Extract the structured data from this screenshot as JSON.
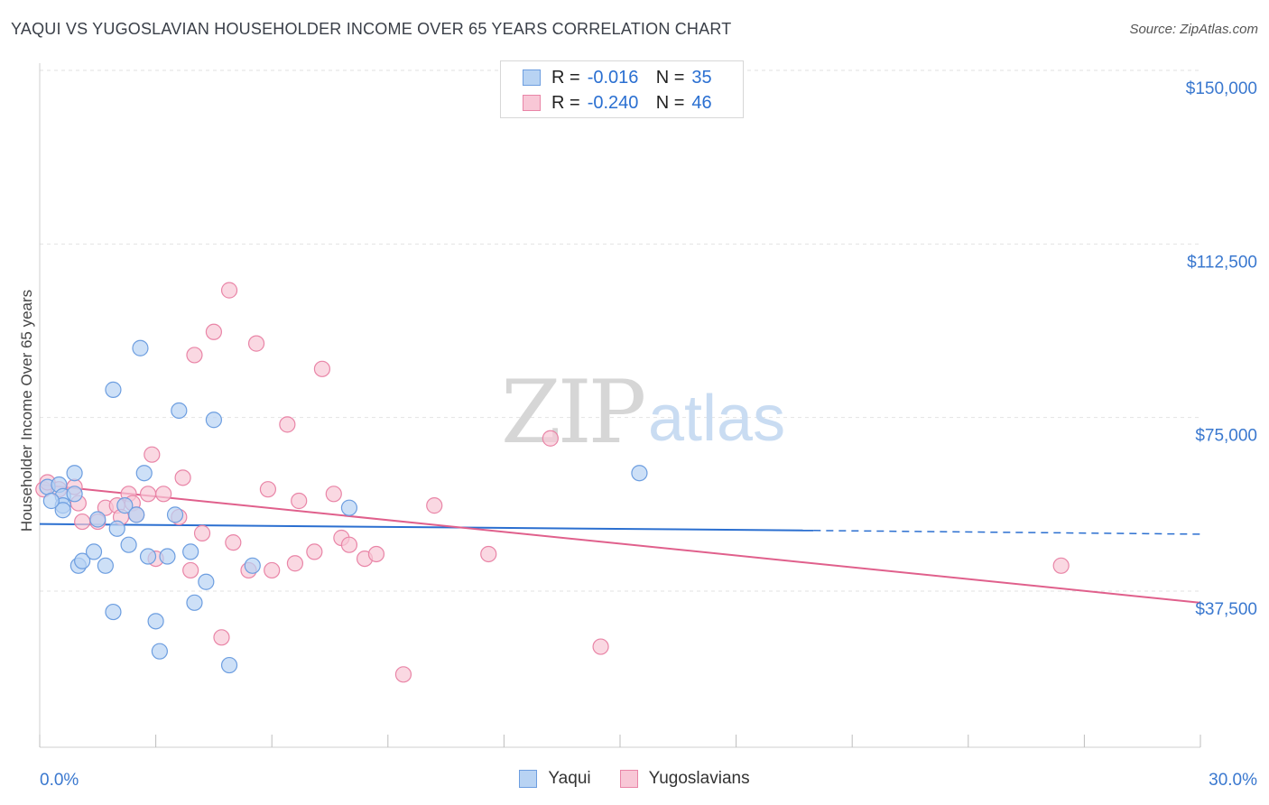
{
  "title": "YAQUI VS YUGOSLAVIAN HOUSEHOLDER INCOME OVER 65 YEARS CORRELATION CHART",
  "source": "Source: ZipAtlas.com",
  "watermark": {
    "zip": "ZIP",
    "atlas": "atlas"
  },
  "colors": {
    "yaqui_fill": "#b8d3f3",
    "yaqui_stroke": "#6d9ee0",
    "yaqui_line": "#2b6fd0",
    "yugo_fill": "#f8c7d6",
    "yugo_stroke": "#e985a7",
    "yugo_line": "#e0608c",
    "tick_label": "#3a78cf",
    "grid": "#e2e2e2"
  },
  "legend_top": [
    {
      "series": "Yaqui",
      "r_label": "R =",
      "r_value": "-0.016",
      "n_label": "N =",
      "n_value": "35"
    },
    {
      "series": "Yugoslavians",
      "r_label": "R =",
      "r_value": "-0.240",
      "n_label": "N =",
      "n_value": "46"
    }
  ],
  "legend_bottom": [
    "Yaqui",
    "Yugoslavians"
  ],
  "chart_data": {
    "type": "scatter",
    "title": "YAQUI VS YUGOSLAVIAN HOUSEHOLDER INCOME OVER 65 YEARS CORRELATION CHART",
    "xlabel": "",
    "ylabel": "Householder Income Over 65 years",
    "xlim": [
      0,
      30
    ],
    "ylim": [
      0,
      155000
    ],
    "x_tick_labels": [
      "0.0%",
      "30.0%"
    ],
    "y_ticks": [
      37500,
      75000,
      112500,
      150000
    ],
    "y_tick_labels": [
      "$37,500",
      "$75,000",
      "$112,500",
      "$150,000"
    ],
    "grid": true,
    "legend_position": "top-center",
    "series": [
      {
        "name": "Yaqui",
        "points": [
          [
            0.2,
            60000
          ],
          [
            0.5,
            60500
          ],
          [
            0.6,
            58000
          ],
          [
            0.6,
            56000
          ],
          [
            0.9,
            63000
          ],
          [
            0.9,
            58500
          ],
          [
            0.6,
            55000
          ],
          [
            1.0,
            43000
          ],
          [
            1.1,
            44000
          ],
          [
            1.4,
            46000
          ],
          [
            1.5,
            53000
          ],
          [
            1.7,
            43000
          ],
          [
            1.9,
            81000
          ],
          [
            1.9,
            33000
          ],
          [
            2.0,
            51000
          ],
          [
            2.2,
            56000
          ],
          [
            2.3,
            47500
          ],
          [
            2.5,
            54000
          ],
          [
            2.6,
            90000
          ],
          [
            2.7,
            63000
          ],
          [
            2.8,
            45000
          ],
          [
            3.0,
            31000
          ],
          [
            3.1,
            24500
          ],
          [
            3.3,
            45000
          ],
          [
            3.5,
            54000
          ],
          [
            3.6,
            76500
          ],
          [
            3.9,
            46000
          ],
          [
            4.0,
            35000
          ],
          [
            4.3,
            39500
          ],
          [
            4.5,
            74500
          ],
          [
            4.9,
            21500
          ],
          [
            5.5,
            43000
          ],
          [
            8.0,
            55500
          ],
          [
            15.5,
            63000
          ],
          [
            0.3,
            57000
          ]
        ],
        "trend": {
          "x": [
            0,
            20
          ],
          "y": [
            52000,
            50600
          ],
          "dashed_to": [
            30,
            49800
          ]
        }
      },
      {
        "name": "Yugoslavians",
        "points": [
          [
            0.1,
            59500
          ],
          [
            0.5,
            59500
          ],
          [
            0.9,
            60000
          ],
          [
            1.0,
            56500
          ],
          [
            1.1,
            52500
          ],
          [
            1.5,
            52500
          ],
          [
            1.7,
            55500
          ],
          [
            2.0,
            56000
          ],
          [
            2.1,
            53500
          ],
          [
            2.3,
            58500
          ],
          [
            2.4,
            56500
          ],
          [
            2.5,
            54000
          ],
          [
            2.8,
            58500
          ],
          [
            2.9,
            67000
          ],
          [
            3.0,
            44500
          ],
          [
            3.2,
            58500
          ],
          [
            3.6,
            53500
          ],
          [
            3.7,
            62000
          ],
          [
            3.9,
            42000
          ],
          [
            4.0,
            88500
          ],
          [
            4.2,
            50000
          ],
          [
            4.5,
            93500
          ],
          [
            4.7,
            27500
          ],
          [
            4.9,
            102500
          ],
          [
            5.0,
            48000
          ],
          [
            5.4,
            42000
          ],
          [
            5.6,
            91000
          ],
          [
            5.9,
            59500
          ],
          [
            6.0,
            42000
          ],
          [
            6.4,
            73500
          ],
          [
            6.6,
            43500
          ],
          [
            6.7,
            57000
          ],
          [
            7.1,
            46000
          ],
          [
            7.3,
            85500
          ],
          [
            7.6,
            58500
          ],
          [
            7.8,
            49000
          ],
          [
            8.0,
            47500
          ],
          [
            8.4,
            44500
          ],
          [
            8.7,
            45500
          ],
          [
            9.4,
            19500
          ],
          [
            10.2,
            56000
          ],
          [
            11.6,
            45500
          ],
          [
            13.2,
            70500
          ],
          [
            14.5,
            25500
          ],
          [
            26.4,
            43000
          ],
          [
            0.2,
            61000
          ]
        ],
        "trend": {
          "x": [
            0,
            30
          ],
          "y": [
            60500,
            35000
          ]
        }
      }
    ]
  }
}
